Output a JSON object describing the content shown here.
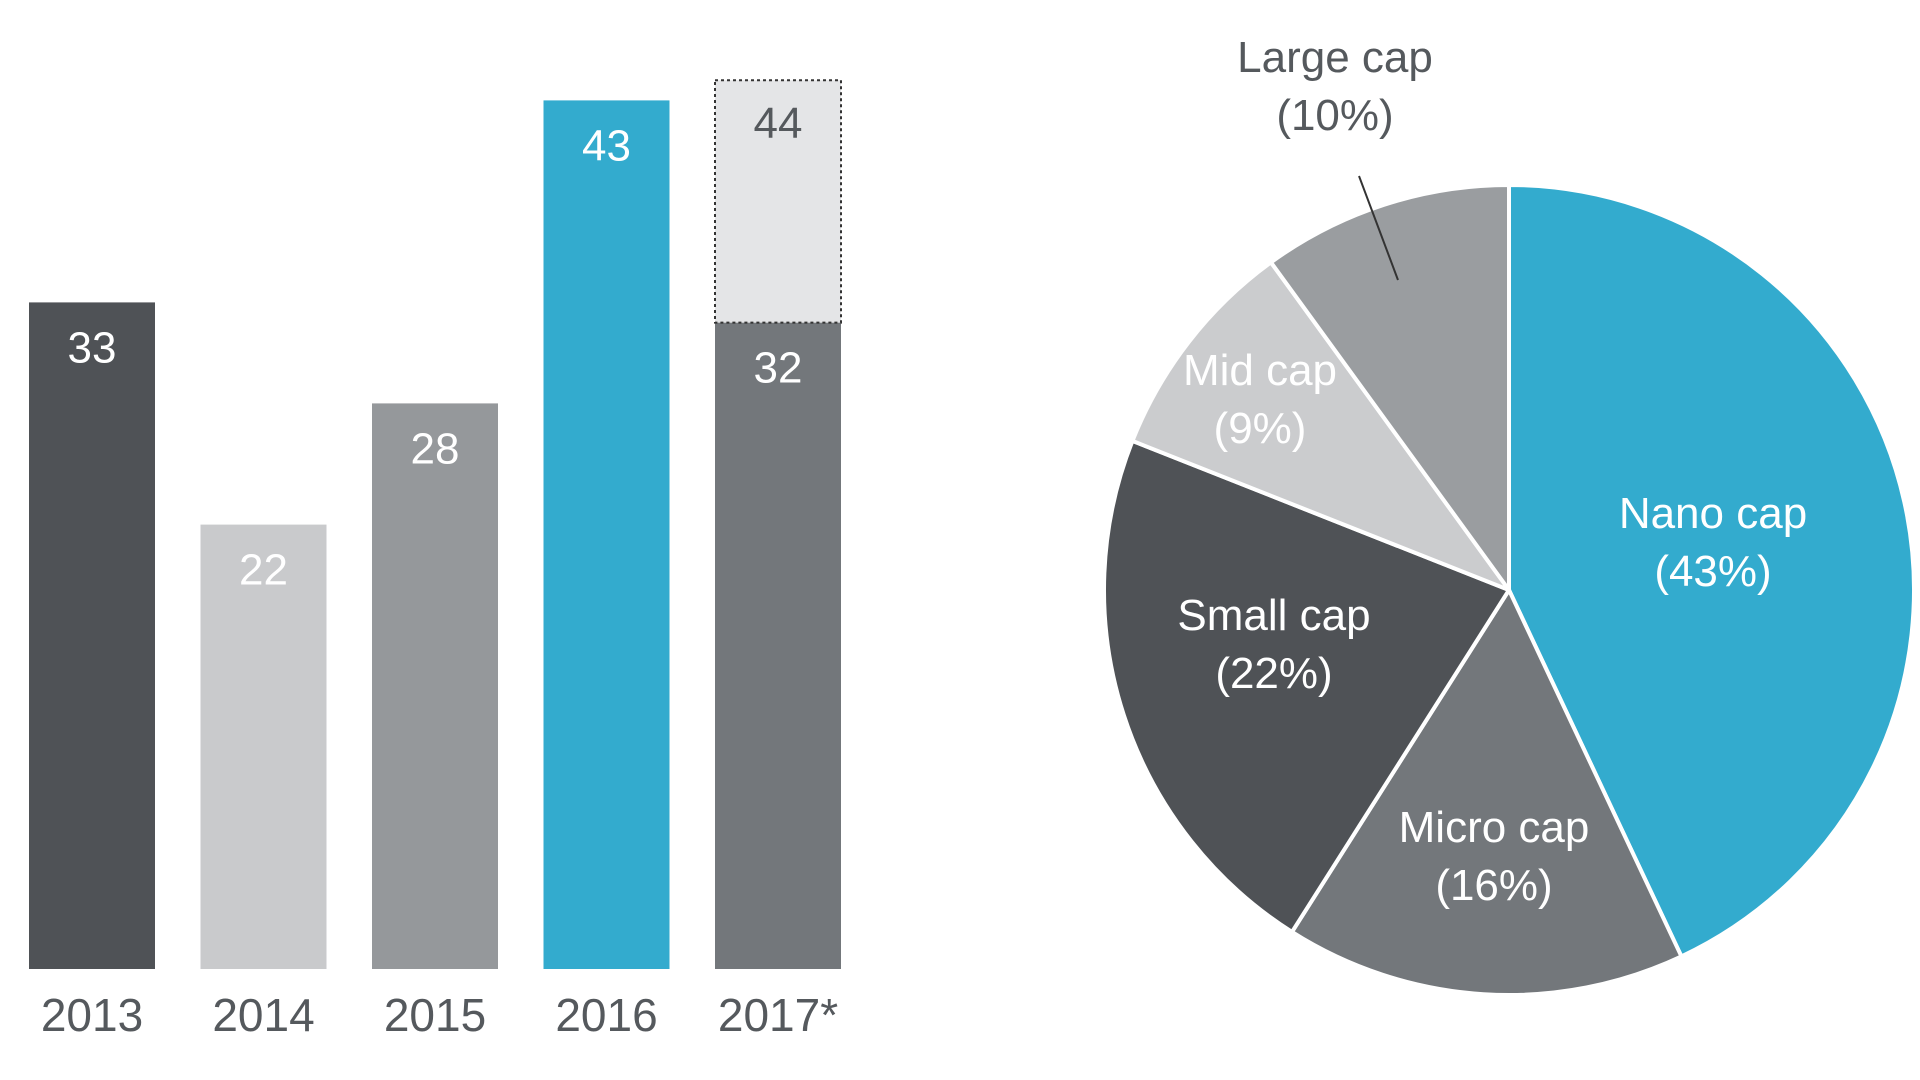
{
  "chart_data": [
    {
      "type": "bar",
      "categories": [
        "2013",
        "2014",
        "2015",
        "2016",
        "2017*"
      ],
      "series": [
        {
          "values": [
            33,
            22,
            28,
            43,
            32
          ]
        },
        {
          "values": [
            null,
            null,
            null,
            null,
            44
          ]
        }
      ],
      "labels": [
        "33",
        "22",
        "28",
        "43",
        "32"
      ],
      "projected_label": "44",
      "ylim": [
        0,
        50
      ],
      "grid": false,
      "colors": [
        "#4f5256",
        "#c9cacc",
        "#95989b",
        "#33abce",
        "#73777b"
      ],
      "projected_color": "#e4e5e7"
    },
    {
      "type": "pie",
      "slices": [
        {
          "label": "Nano cap",
          "pct_text": "(43%)",
          "value": 43,
          "color": "#33abce"
        },
        {
          "label": "Micro cap",
          "pct_text": "(16%)",
          "value": 16,
          "color": "#73777b"
        },
        {
          "label": "Small cap",
          "pct_text": "(22%)",
          "value": 22,
          "color": "#4f5256"
        },
        {
          "label": "Mid cap",
          "pct_text": "(9%)",
          "value": 9,
          "color": "#cbccce"
        },
        {
          "label": "Large cap",
          "pct_text": "(10%)",
          "value": 10,
          "color": "#9a9da0"
        }
      ],
      "start": "top, clockwise"
    }
  ]
}
